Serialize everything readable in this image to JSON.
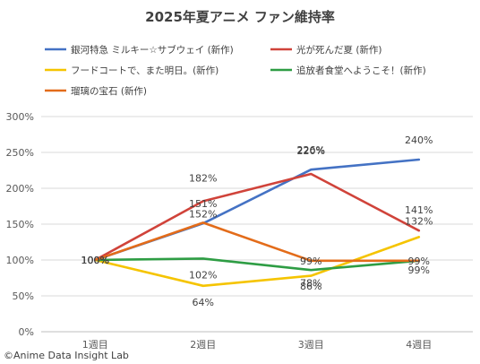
{
  "chart_data": {
    "type": "line",
    "title": "2025年夏アニメ ファン維持率",
    "categories": [
      "1週目",
      "2週目",
      "3週目",
      "4週目"
    ],
    "ylim": [
      0,
      300
    ],
    "yticks": [
      "0%",
      "50%",
      "100%",
      "150%",
      "200%",
      "250%",
      "300%"
    ],
    "grid": true,
    "legend_position": "top",
    "series": [
      {
        "name": "銀河特急 ミルキー☆サブウェイ (新作)",
        "color": "#4472C4",
        "values": [
          100,
          151,
          226,
          240
        ],
        "labels": [
          "100%",
          "151%",
          "226%",
          "240%"
        ]
      },
      {
        "name": "光が死んだ夏 (新作)",
        "color": "#D0433A",
        "values": [
          100,
          182,
          220,
          141
        ],
        "labels": [
          "100%",
          "182%",
          "220%",
          "141%"
        ]
      },
      {
        "name": "フードコートで、また明日。(新作)",
        "color": "#F5C400",
        "values": [
          100,
          64,
          78,
          132
        ],
        "labels": [
          "100%",
          "64%",
          "78%",
          "132%"
        ]
      },
      {
        "name": "追放者食堂へようこそ！(新作)",
        "color": "#2E9D44",
        "values": [
          100,
          102,
          86,
          99
        ],
        "labels": [
          "100%",
          "102%",
          "86%",
          "99%"
        ]
      },
      {
        "name": "瑠璃の宝石 (新作)",
        "color": "#E36C1A",
        "values": [
          100,
          152,
          99,
          99
        ],
        "labels": [
          "100%",
          "152%",
          "99%",
          "99%"
        ]
      }
    ]
  },
  "credit": "©Anime Data Insight Lab"
}
